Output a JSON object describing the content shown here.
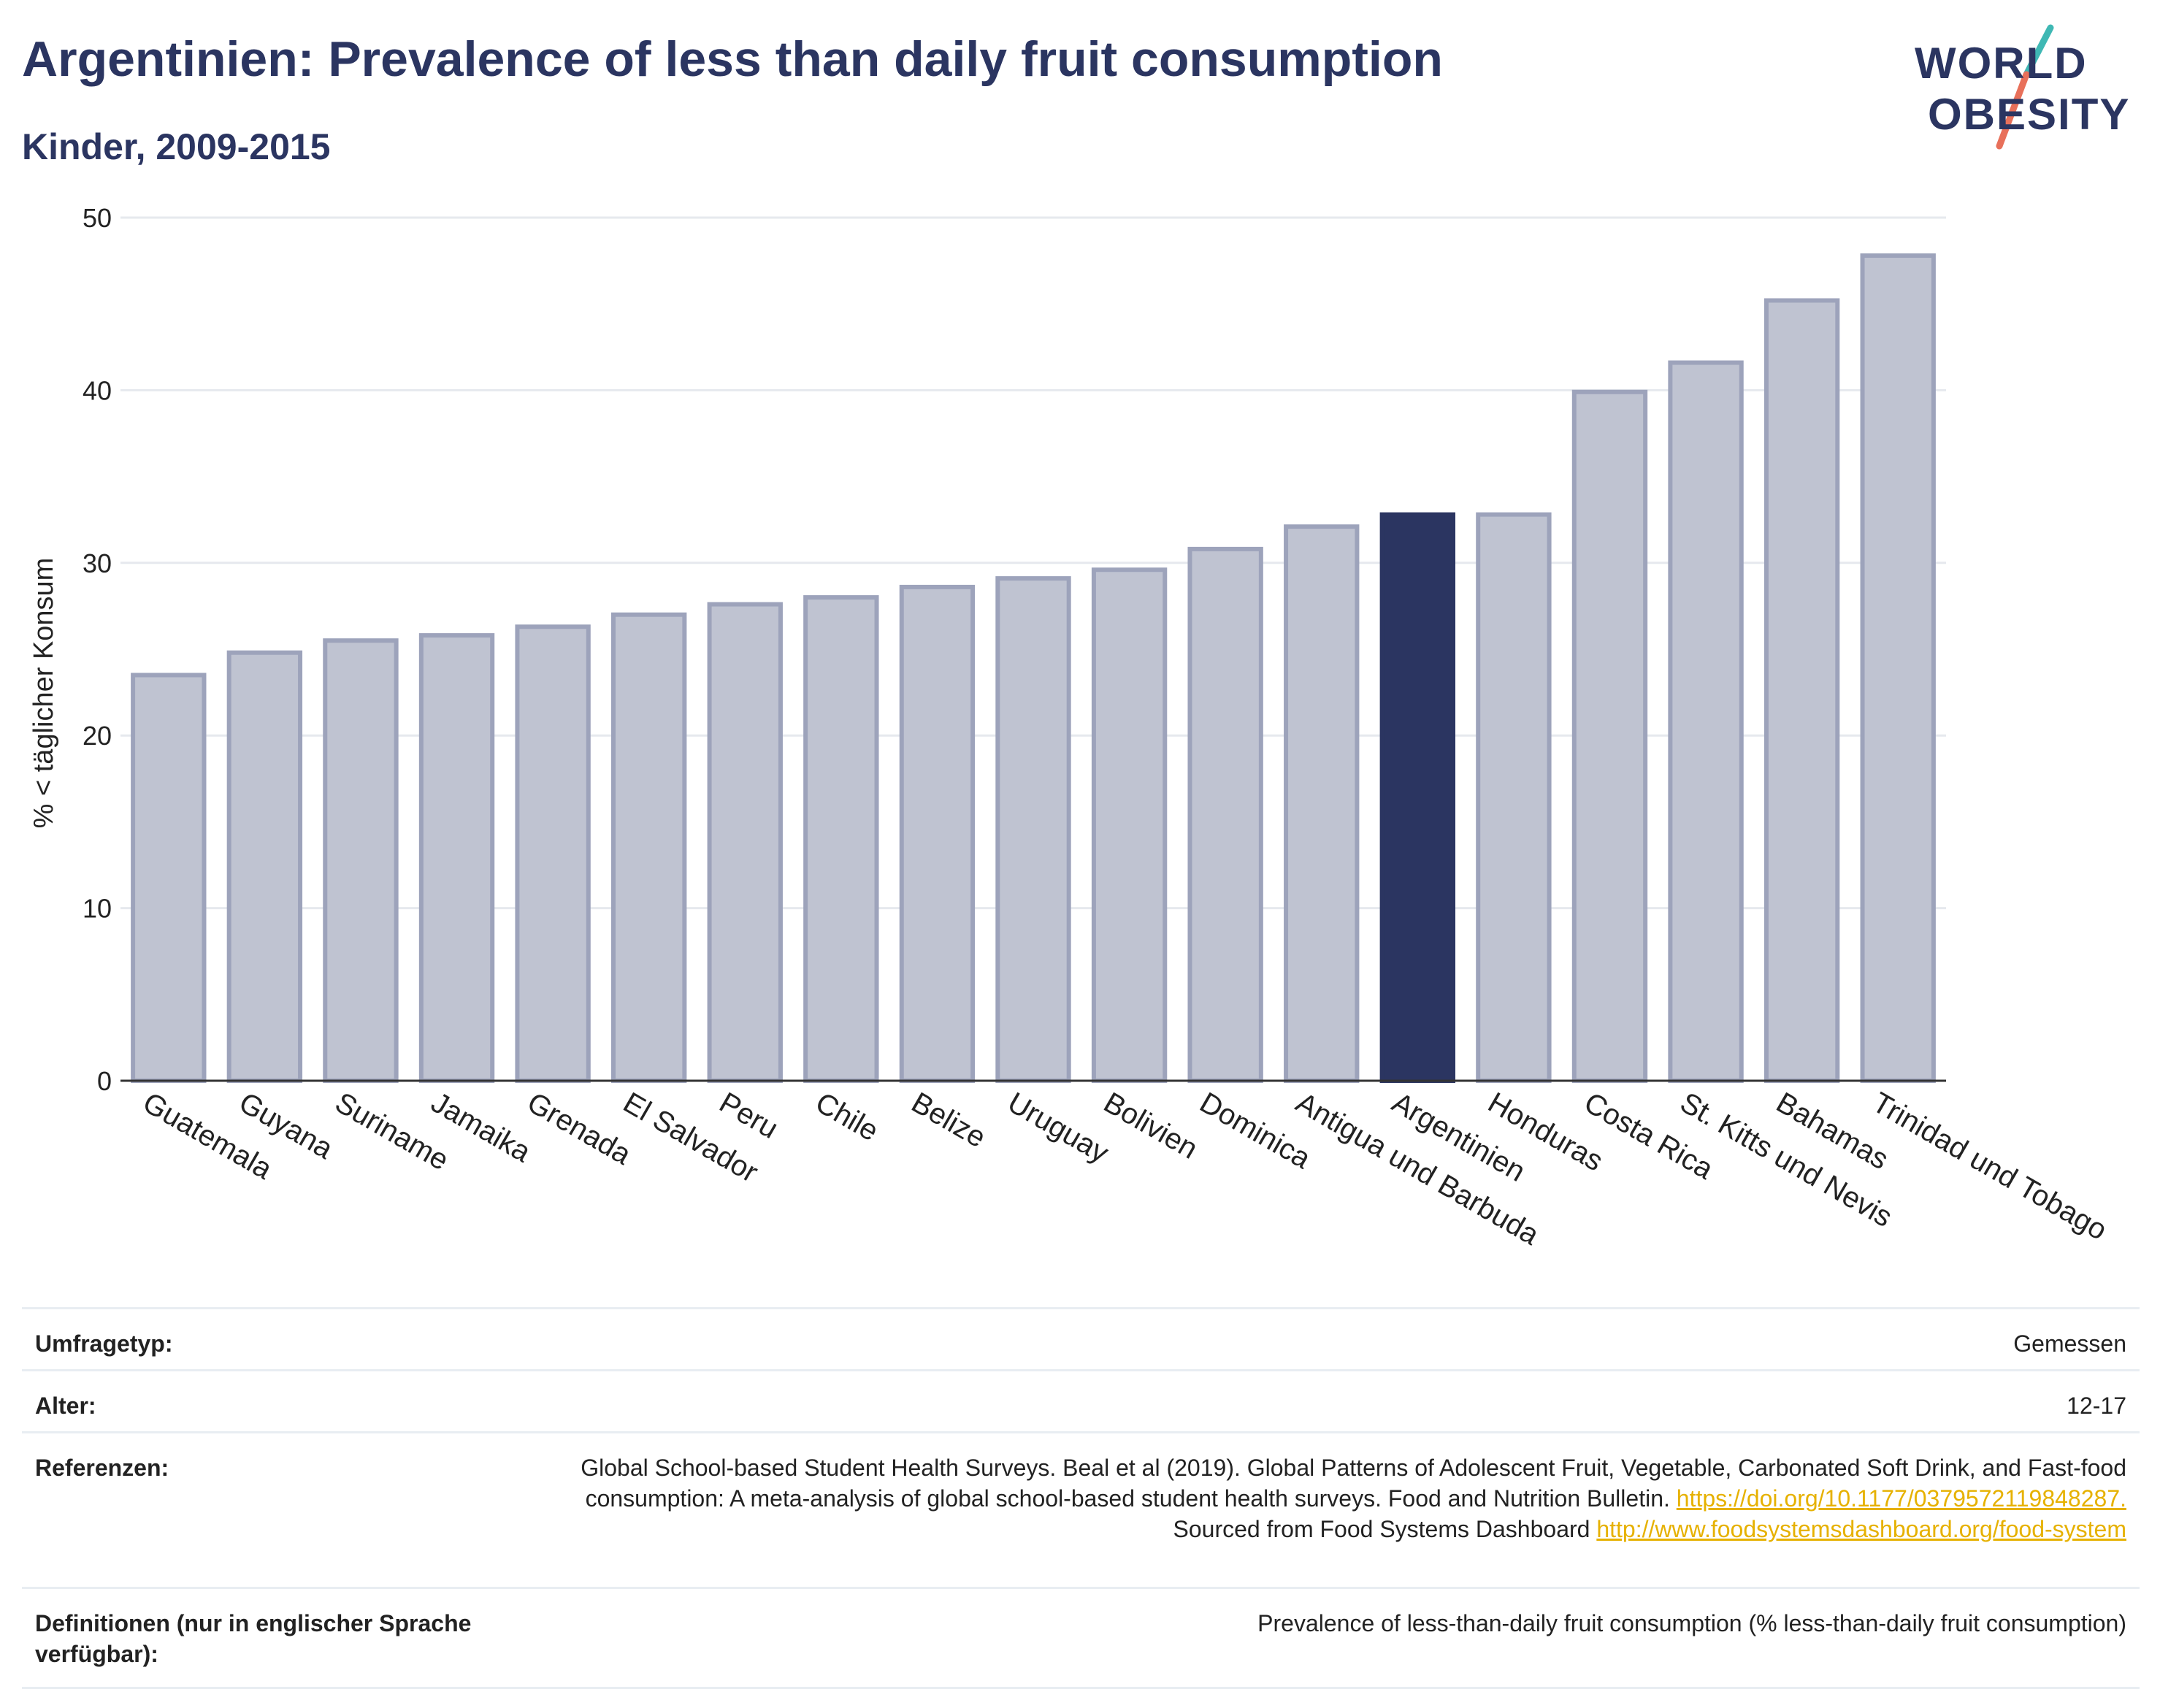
{
  "header": {
    "title": "Argentinien: Prevalence of less than daily fruit consumption",
    "subtitle": "Kinder, 2009-2015"
  },
  "logo": {
    "line1": "WORLD",
    "line2": "OBESITY",
    "colors": {
      "text": "#2b3561",
      "slash_top": "#3fb8b4",
      "slash_bottom": "#e8705a"
    }
  },
  "chart_data": {
    "type": "bar",
    "title": "",
    "xlabel": "",
    "ylabel": "% < täglicher Konsum",
    "ylim": [
      0,
      50
    ],
    "yticks": [
      0,
      10,
      20,
      30,
      40,
      50
    ],
    "grid": true,
    "categories": [
      "Guatemala",
      "Guyana",
      "Suriname",
      "Jamaika",
      "Grenada",
      "El Salvador",
      "Peru",
      "Chile",
      "Belize",
      "Uruguay",
      "Bolivien",
      "Dominica",
      "Antigua und Barbuda",
      "Argentinien",
      "Honduras",
      "Costa Rica",
      "St. Kitts und Nevis",
      "Bahamas",
      "Trinidad und Tobago"
    ],
    "values": [
      23.5,
      24.8,
      25.5,
      25.8,
      26.3,
      27.0,
      27.6,
      28.0,
      28.6,
      29.1,
      29.6,
      30.8,
      32.1,
      32.8,
      32.8,
      39.9,
      41.6,
      45.2,
      47.8
    ],
    "highlight": "Argentinien",
    "colors": {
      "bar": "#bfc3d1",
      "bar_edge": "#9da3bb",
      "highlight": "#2b3561"
    }
  },
  "meta": {
    "survey_label": "Umfragetyp:",
    "survey_value": "Gemessen",
    "age_label": "Alter:",
    "age_value": "12-17",
    "refs_label": "Referenzen:",
    "refs_text1": "Global School-based Student Health Surveys. Beal et al (2019). Global Patterns of Adolescent Fruit, Vegetable, Carbonated Soft Drink, and Fast-food consumption: A meta-analysis of global school-based student health surveys. Food and Nutrition Bulletin.",
    "refs_link1": "https://doi.org/10.1177/0379572119848287.",
    "refs_text2": "Sourced from Food Systems Dashboard",
    "refs_link2": "http://www.foodsystemsdashboard.org/food-system",
    "def_label": "Definitionen (nur in englischer Sprache verfügbar):",
    "def_value": "Prevalence of less-than-daily fruit consumption (% less-than-daily fruit consumption)"
  }
}
